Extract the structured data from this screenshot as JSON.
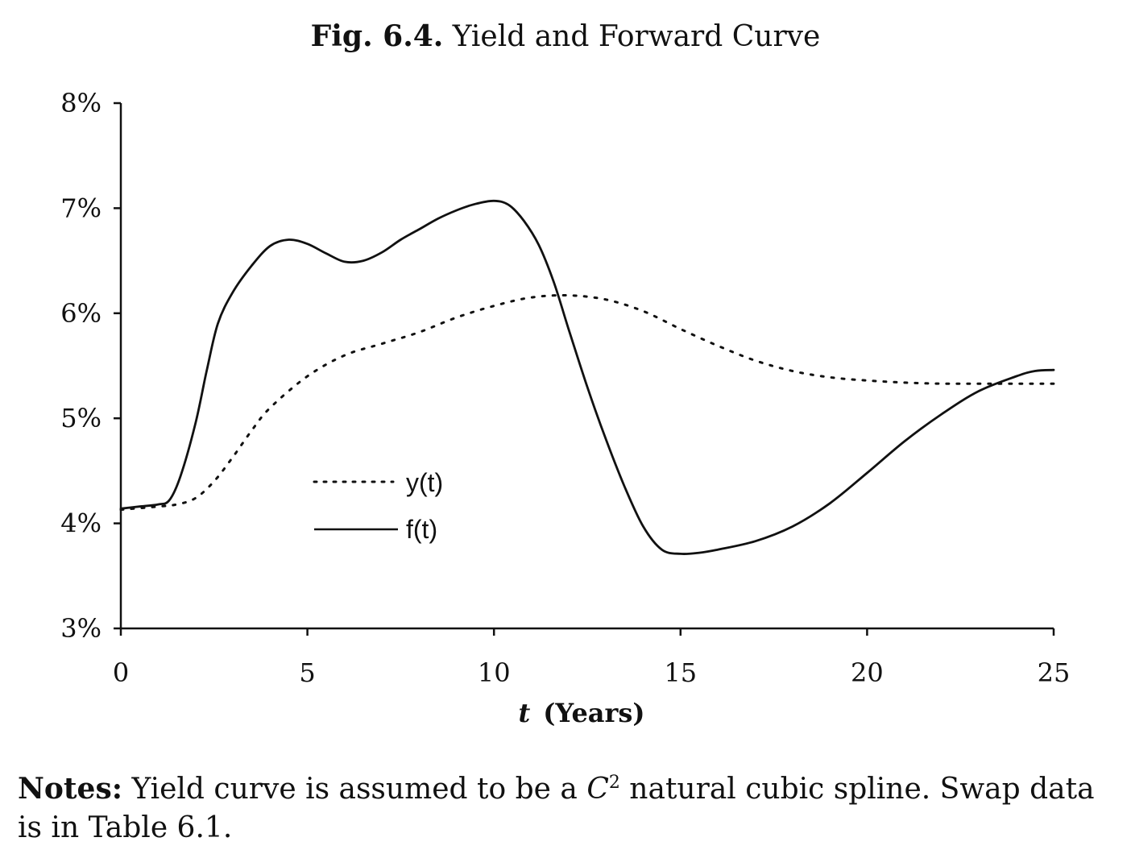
{
  "title": {
    "prefix": "Fig. 6.4.",
    "text": "Yield and Forward Curve"
  },
  "notes": {
    "label": "Notes:",
    "text_before": "Yield curve is assumed to be a ",
    "math_symbol": "C",
    "math_sup": "2",
    "text_after": " natural cubic spline. Swap data is in Table 6.1."
  },
  "chart_data": {
    "type": "line",
    "xlabel_var": "t",
    "xlabel_rest": "(Years)",
    "xlim": [
      0,
      25
    ],
    "ylim": [
      3,
      8
    ],
    "xticks": [
      "0",
      "5",
      "10",
      "15",
      "20",
      "25"
    ],
    "yticks": [
      "3%",
      "4%",
      "5%",
      "6%",
      "7%",
      "8%"
    ],
    "legend_placement": "center-left",
    "grid": false,
    "series": [
      {
        "name": "y(t)",
        "style": "dotted",
        "x": [
          0,
          1,
          1.5,
          2,
          2.5,
          3,
          3.5,
          4,
          5,
          6,
          7,
          8,
          9,
          10,
          11,
          12,
          13,
          14,
          15,
          16,
          17,
          18,
          19,
          20,
          21,
          22,
          23,
          24,
          25
        ],
        "y": [
          4.13,
          4.16,
          4.18,
          4.24,
          4.4,
          4.63,
          4.88,
          5.1,
          5.4,
          5.6,
          5.71,
          5.82,
          5.96,
          6.07,
          6.15,
          6.17,
          6.13,
          6.02,
          5.85,
          5.69,
          5.55,
          5.45,
          5.39,
          5.36,
          5.34,
          5.33,
          5.33,
          5.33,
          5.33
        ]
      },
      {
        "name": "f(t)",
        "style": "solid",
        "x": [
          0,
          0.5,
          1,
          1.3,
          1.6,
          2,
          2.3,
          2.6,
          3,
          3.5,
          4,
          4.5,
          5,
          5.5,
          6,
          6.5,
          7,
          7.5,
          8,
          8.5,
          9,
          9.5,
          10,
          10.4,
          10.8,
          11.2,
          11.6,
          12,
          12.5,
          13,
          13.5,
          14,
          14.5,
          15,
          15.5,
          16,
          17,
          18,
          19,
          20,
          21,
          22,
          23,
          24,
          24.5,
          25
        ],
        "y": [
          4.14,
          4.16,
          4.18,
          4.22,
          4.45,
          4.95,
          5.45,
          5.9,
          6.2,
          6.45,
          6.64,
          6.7,
          6.66,
          6.57,
          6.49,
          6.5,
          6.58,
          6.7,
          6.8,
          6.9,
          6.98,
          7.04,
          7.07,
          7.03,
          6.88,
          6.65,
          6.3,
          5.85,
          5.3,
          4.8,
          4.35,
          3.97,
          3.75,
          3.71,
          3.72,
          3.75,
          3.83,
          3.97,
          4.19,
          4.48,
          4.78,
          5.04,
          5.26,
          5.4,
          5.45,
          5.46
        ]
      }
    ]
  }
}
